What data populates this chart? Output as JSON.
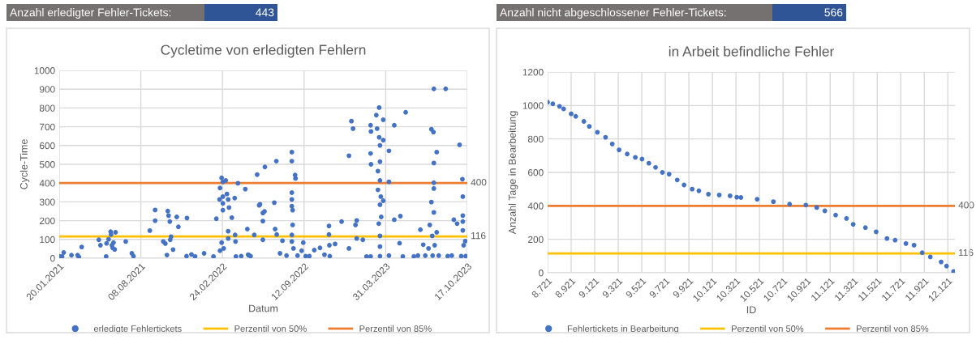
{
  "chart_data": [
    {
      "type": "other",
      "title": "Anzahl erledigter Fehler-Tickets:",
      "annotations": [
        "443"
      ]
    },
    {
      "type": "scatter",
      "title": "Cycletime von erledigten Fehlern",
      "xlabel": "Datum",
      "ylabel": "Cycle-Time",
      "xlim": [
        "2021-01-20",
        "2023-10-17"
      ],
      "xticks": [
        {
          "value": "2021-01-20",
          "label": "20.01.2021"
        },
        {
          "value": "2021-08-08",
          "label": "08.08.2021"
        },
        {
          "value": "2022-02-24",
          "label": "24.02.2022"
        },
        {
          "value": "2022-09-12",
          "label": "12.09.2022"
        },
        {
          "value": "2023-03-31",
          "label": "31.03.2023"
        },
        {
          "value": "2023-10-17",
          "label": "17.10.2023"
        }
      ],
      "ylim": [
        0,
        1000
      ],
      "yticks": [
        0,
        100,
        200,
        300,
        400,
        500,
        600,
        700,
        800,
        900,
        1000
      ],
      "grid": true,
      "legend": "bottom",
      "series": [
        {
          "name": "erledigte Fehlertickets",
          "color": "#4472c4",
          "marker": "circle",
          "x": [
            "2021-01-20",
            "2021-01-27",
            "2021-01-31",
            "2021-02-19",
            "2021-03-06",
            "2021-03-09",
            "2021-03-16",
            "2021-04-27",
            "2021-05-01",
            "2021-05-15",
            "2021-05-16",
            "2021-05-21",
            "2021-05-26",
            "2021-05-27",
            "2021-05-29",
            "2021-05-31",
            "2021-06-02",
            "2021-06-05",
            "2021-06-07",
            "2021-07-02",
            "2021-07-17",
            "2021-07-21",
            "2021-08-30",
            "2021-09-12",
            "2021-09-12",
            "2021-10-02",
            "2021-10-07",
            "2021-10-11",
            "2021-10-13",
            "2021-10-15",
            "2021-10-18",
            "2021-10-19",
            "2021-10-21",
            "2021-10-26",
            "2021-11-04",
            "2021-11-08",
            "2021-11-28",
            "2021-11-29",
            "2021-12-10",
            "2021-12-19",
            "2022-01-10",
            "2022-02-02",
            "2022-02-09",
            "2022-02-17",
            "2022-02-18",
            "2022-02-18",
            "2022-02-22",
            "2022-02-22",
            "2022-02-25",
            "2022-02-25",
            "2022-02-25",
            "2022-02-25",
            "2022-02-27",
            "2022-03-04",
            "2022-03-07",
            "2022-03-10",
            "2022-03-10",
            "2022-03-10",
            "2022-03-12",
            "2022-03-19",
            "2022-03-26",
            "2022-03-27",
            "2022-03-28",
            "2022-03-29",
            "2022-04-03",
            "2022-04-11",
            "2022-04-21",
            "2022-04-26",
            "2022-04-28",
            "2022-04-29",
            "2022-05-04",
            "2022-05-13",
            "2022-05-20",
            "2022-05-25",
            "2022-05-27",
            "2022-06-03",
            "2022-06-03",
            "2022-06-03",
            "2022-06-07",
            "2022-06-08",
            "2022-07-01",
            "2022-07-03",
            "2022-07-06",
            "2022-07-07",
            "2022-07-15",
            "2022-07-21",
            "2022-07-31",
            "2022-08-13",
            "2022-08-13",
            "2022-08-13",
            "2022-08-13",
            "2022-08-13",
            "2022-08-13",
            "2022-08-13",
            "2022-08-15",
            "2022-08-15",
            "2022-08-17",
            "2022-08-21",
            "2022-08-22",
            "2022-08-27",
            "2022-09-06",
            "2022-09-10",
            "2022-09-16",
            "2022-09-25",
            "2022-10-07",
            "2022-10-21",
            "2022-11-01",
            "2022-11-12",
            "2022-11-12",
            "2022-11-13",
            "2022-11-14",
            "2022-11-27",
            "2022-12-13",
            "2022-12-31",
            "2022-12-31",
            "2023-01-06",
            "2023-01-10",
            "2023-01-16",
            "2023-01-19",
            "2023-01-19",
            "2023-02-03",
            "2023-02-12",
            "2023-02-22",
            "2023-02-22",
            "2023-02-22",
            "2023-02-23",
            "2023-02-23",
            "2023-03-08",
            "2023-03-10",
            "2023-03-12",
            "2023-03-12",
            "2023-03-14",
            "2023-03-15",
            "2023-03-15",
            "2023-03-17",
            "2023-03-17",
            "2023-03-17",
            "2023-03-17",
            "2023-03-17",
            "2023-03-17",
            "2023-03-17",
            "2023-03-19",
            "2023-03-20",
            "2023-03-25",
            "2023-03-25",
            "2023-03-25",
            "2023-04-08",
            "2023-04-08",
            "2023-04-08",
            "2023-04-21",
            "2023-04-21",
            "2023-05-04",
            "2023-05-06",
            "2023-05-12",
            "2023-05-19",
            "2023-06-08",
            "2023-06-18",
            "2023-06-24",
            "2023-07-01",
            "2023-07-06",
            "2023-07-14",
            "2023-07-17",
            "2023-07-21",
            "2023-07-21",
            "2023-07-23",
            "2023-07-24",
            "2023-07-26",
            "2023-07-27",
            "2023-07-27",
            "2023-07-27",
            "2023-07-27",
            "2023-07-27",
            "2023-07-29",
            "2023-08-03",
            "2023-08-03",
            "2023-08-08",
            "2023-08-25",
            "2023-08-30",
            "2023-09-09",
            "2023-09-14",
            "2023-09-22",
            "2023-09-28",
            "2023-10-02",
            "2023-10-05",
            "2023-10-06",
            "2023-10-06",
            "2023-10-06",
            "2023-10-06",
            "2023-10-08",
            "2023-10-12",
            "2023-10-13"
          ],
          "values": [
            10,
            9,
            30,
            16,
            16,
            7,
            60,
            98,
            69,
            9,
            79,
            101,
            141,
            126,
            69,
            55,
            83,
            47,
            138,
            89,
            26,
            11,
            147,
            200,
            257,
            89,
            78,
            17,
            251,
            227,
            195,
            98,
            115,
            46,
            220,
            167,
            11,
            214,
            20,
            9,
            26,
            9,
            210,
            313,
            374,
            40,
            428,
            83,
            407,
            328,
            292,
            256,
            52,
            414,
            342,
            313,
            144,
            105,
            270,
            216,
            320,
            124,
            89,
            9,
            399,
            11,
            368,
            155,
            19,
            16,
            11,
            124,
            445,
            282,
            287,
            241,
            198,
            98,
            249,
            486,
            296,
            155,
            517,
            126,
            26,
            93,
            14,
            565,
            517,
            349,
            313,
            277,
            124,
            89,
            256,
            177,
            52,
            443,
            425,
            14,
            40,
            83,
            11,
            11,
            43,
            55,
            19,
            172,
            126,
            69,
            11,
            76,
            195,
            546,
            52,
            730,
            690,
            177,
            201,
            105,
            98,
            9,
            9,
            708,
            558,
            675,
            500,
            762,
            690,
            464,
            364,
            184,
            802,
            644,
            601,
            514,
            414,
            285,
            119,
            62,
            11,
            328,
            220,
            737,
            629,
            306,
            572,
            407,
            14,
            708,
            205,
            80,
            224,
            9,
            777,
            9,
            14,
            152,
            72,
            14,
            52,
            177,
            687,
            299,
            119,
            14,
            672,
            902,
            507,
            402,
            371,
            244,
            69,
            565,
            138,
            14,
            902,
            11,
            14,
            205,
            184,
            604,
            11,
            421,
            328,
            227,
            195,
            148,
            69,
            91,
            11
          ]
        },
        {
          "name": "Perzentil von 50%",
          "type": "line",
          "color": "#ffc000",
          "x": [
            "2021-01-20",
            "2023-10-17"
          ],
          "values": [
            116,
            116
          ]
        },
        {
          "name": "Perzentil von 85%",
          "type": "line",
          "color": "#ed7d31",
          "x": [
            "2021-01-20",
            "2023-10-17"
          ],
          "values": [
            400,
            400
          ]
        }
      ],
      "annotations": [
        {
          "text": "400",
          "x": "2023-10-17",
          "y": 400
        },
        {
          "text": "116",
          "x": "2023-10-17",
          "y": 116
        }
      ]
    },
    {
      "type": "other",
      "title": "Anzahl nicht abgeschlossener Fehler-Tickets:",
      "annotations": [
        "566"
      ]
    },
    {
      "type": "scatter",
      "title": "in Arbeit befindliche Fehler",
      "xlabel": "ID",
      "ylabel": "Anzahl Tage in Bearbeitung",
      "xlim": [
        8721,
        12181
      ],
      "xticks": [
        {
          "value": 8721,
          "label": "8.721"
        },
        {
          "value": 8921,
          "label": "8.921"
        },
        {
          "value": 9121,
          "label": "9.121"
        },
        {
          "value": 9321,
          "label": "9.321"
        },
        {
          "value": 9521,
          "label": "9.521"
        },
        {
          "value": 9721,
          "label": "9.721"
        },
        {
          "value": 9921,
          "label": "9.921"
        },
        {
          "value": 10121,
          "label": "10.121"
        },
        {
          "value": 10321,
          "label": "10.321"
        },
        {
          "value": 10521,
          "label": "10.521"
        },
        {
          "value": 10721,
          "label": "10.721"
        },
        {
          "value": 10921,
          "label": "10.921"
        },
        {
          "value": 11121,
          "label": "11.121"
        },
        {
          "value": 11321,
          "label": "11.321"
        },
        {
          "value": 11521,
          "label": "11.521"
        },
        {
          "value": 11721,
          "label": "11.721"
        },
        {
          "value": 11921,
          "label": "11.921"
        },
        {
          "value": 12121,
          "label": "12.121"
        }
      ],
      "ylim": [
        0,
        1200
      ],
      "yticks": [
        0,
        200,
        400,
        600,
        800,
        1000,
        1200
      ],
      "grid": true,
      "legend": "bottom",
      "series": [
        {
          "name": "Fehlertickets in Bearbeitung",
          "color": "#4472c4",
          "marker": "circle",
          "x": [
            8721,
            8765,
            8822,
            8857,
            8921,
            8960,
            9029,
            9075,
            9144,
            9213,
            9270,
            9328,
            9397,
            9466,
            9523,
            9581,
            9638,
            9696,
            9753,
            9822,
            9880,
            9949,
            10006,
            10087,
            10179,
            10271,
            10328,
            10363,
            10501,
            10639,
            10777,
            10915,
            11007,
            11076,
            11168,
            11260,
            11317,
            11421,
            11512,
            11604,
            11673,
            11765,
            11834,
            11903,
            11972,
            12064,
            12110,
            12170
          ],
          "values": [
            1020,
            1010,
            995,
            980,
            950,
            935,
            905,
            875,
            840,
            810,
            770,
            735,
            710,
            690,
            680,
            655,
            630,
            600,
            590,
            555,
            525,
            500,
            490,
            470,
            465,
            460,
            452,
            450,
            440,
            425,
            410,
            405,
            390,
            370,
            345,
            325,
            290,
            270,
            245,
            205,
            195,
            175,
            165,
            120,
            95,
            65,
            40,
            8
          ]
        },
        {
          "name": "Perzentil von 50%",
          "type": "line",
          "color": "#ffc000",
          "x": [
            8721,
            12181
          ],
          "values": [
            116,
            116
          ]
        },
        {
          "name": "Perzentil von 85%",
          "type": "line",
          "color": "#ed7d31",
          "x": [
            8721,
            12181
          ],
          "values": [
            400,
            400
          ]
        }
      ],
      "annotations": [
        {
          "text": "400",
          "x": 12181,
          "y": 400
        },
        {
          "text": "116",
          "x": 12181,
          "y": 116
        }
      ]
    }
  ]
}
